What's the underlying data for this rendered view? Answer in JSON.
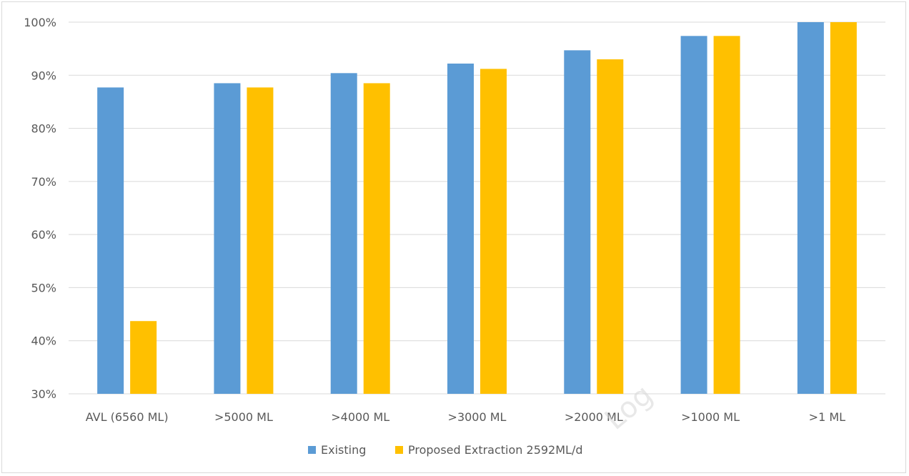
{
  "chart_data": {
    "type": "bar",
    "title": "",
    "xlabel": "",
    "ylabel": "",
    "categories": [
      "AVL (6560 ML)",
      ">5000 ML",
      ">4000 ML",
      ">3000 ML",
      ">2000 ML",
      ">1000 ML",
      ">1 ML"
    ],
    "series": [
      {
        "name": "Existing",
        "color": "#5b9bd5",
        "values": [
          87.7,
          88.5,
          90.4,
          92.2,
          94.7,
          97.4,
          100.0
        ]
      },
      {
        "name": "Proposed Extraction 2592ML/d",
        "color": "#ffc000",
        "values": [
          43.7,
          87.7,
          88.5,
          91.2,
          93.0,
          97.4,
          100.0
        ]
      }
    ],
    "ylim": [
      30,
      100
    ],
    "yticks": [
      "30%",
      "40%",
      "50%",
      "60%",
      "70%",
      "80%",
      "90%",
      "100%"
    ],
    "ytick_values": [
      30,
      40,
      50,
      60,
      70,
      80,
      90,
      100
    ],
    "grid": true,
    "legend_position": "bottom",
    "watermark": "Log"
  }
}
